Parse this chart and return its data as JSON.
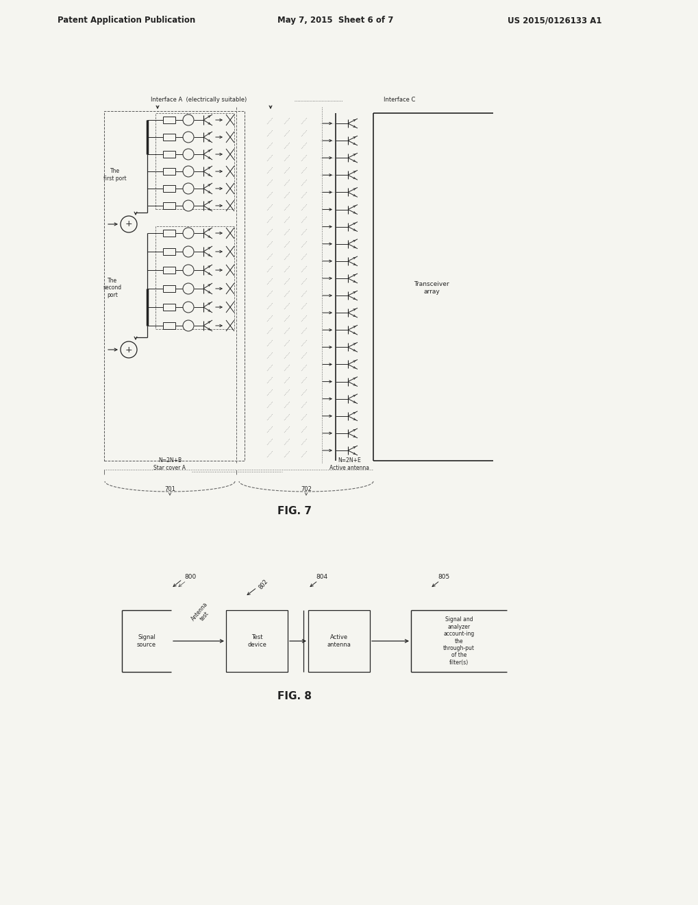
{
  "title_left": "Patent Application Publication",
  "title_mid": "May 7, 2015  Sheet 6 of 7",
  "title_right": "US 2015/0126133 A1",
  "fig7_label": "FIG. 7",
  "fig8_label": "FIG. 8",
  "bg_color": "#f5f5f0",
  "line_color": "#222222",
  "text_color": "#222222",
  "header_bg": "#f5f5f0",
  "interface_a_label": "Interface A  (electrically suitable)",
  "interface_c_label": "Interface C",
  "label_first_port": "The\nfirst port",
  "label_second_port": "The\nsecond\nport",
  "label_transceiver": "Transceiver\narray",
  "label_N2N_B": "N=2N+B\nStar cover A",
  "label_N2N_E": "N=2N+E\nActive antenna",
  "ref1": "701",
  "ref2": "702",
  "fig8_ref0": "800",
  "fig8_ref1": "802",
  "fig8_ref2": "804",
  "fig8_ref3": "805",
  "fig8_box1": "Signal\nsource",
  "fig8_box2": "Test\ndevice",
  "fig8_box3": "Active\nantenna",
  "fig8_box4": "Signal and\nanalyzer\naccount-ing\nthe\nthrough-put\nof the\nfilter(s)",
  "fig8_arrow12": "Antenna\ntest"
}
